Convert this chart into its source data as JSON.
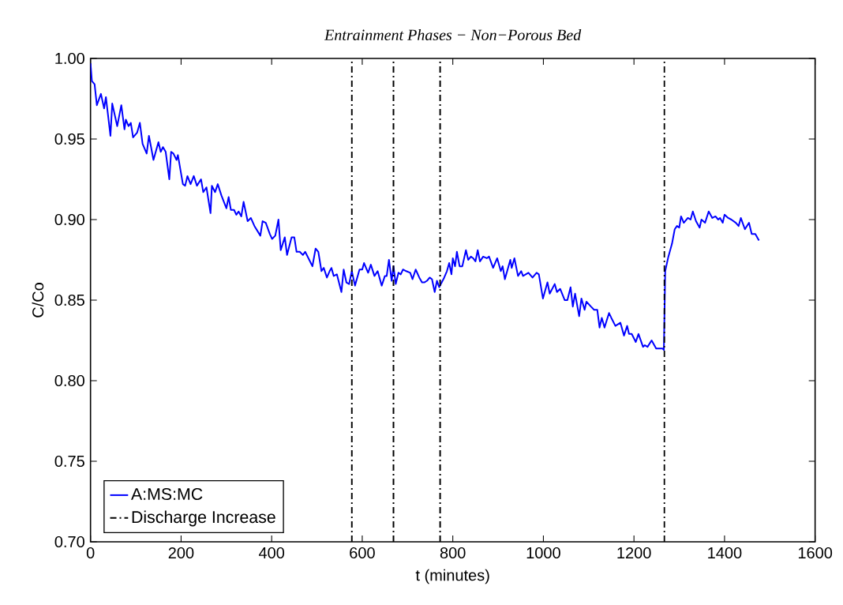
{
  "chart_data": {
    "type": "line",
    "title": "Entrainment Phases − Non−Porous Bed",
    "xlabel": "t (minutes)",
    "ylabel": "C/Co",
    "xlim": [
      0,
      1600
    ],
    "ylim": [
      0.7,
      1.0
    ],
    "xticks": [
      0,
      200,
      400,
      600,
      800,
      1000,
      1200,
      1400,
      1600
    ],
    "yticks": [
      {
        "value": 0.7,
        "label": "0.70"
      },
      {
        "value": 0.75,
        "label": "0.75"
      },
      {
        "value": 0.8,
        "label": "0.80"
      },
      {
        "value": 0.85,
        "label": "0.85"
      },
      {
        "value": 0.9,
        "label": "0.90"
      },
      {
        "value": 0.95,
        "label": "0.95"
      },
      {
        "value": 1.0,
        "label": "1.00"
      }
    ],
    "legend": "bottom left",
    "grid": false,
    "marker": "none",
    "series": [
      {
        "name": "A:MS:MC",
        "color": "#0000ff",
        "line_style": "solid",
        "x": [
          0,
          3,
          9,
          14,
          23,
          30,
          34,
          44,
          48,
          59,
          68,
          75,
          78,
          84,
          89,
          94,
          103,
          109,
          115,
          124,
          129,
          139,
          150,
          155,
          160,
          166,
          174,
          178,
          183,
          190,
          193,
          204,
          209,
          214,
          221,
          228,
          235,
          244,
          249,
          256,
          265,
          268,
          275,
          281,
          289,
          300,
          305,
          310,
          317,
          322,
          327,
          333,
          338,
          347,
          354,
          362,
          375,
          380,
          387,
          396,
          401,
          408,
          415,
          420,
          429,
          434,
          444,
          450,
          455,
          462,
          469,
          474,
          483,
          490,
          497,
          503,
          510,
          515,
          522,
          528,
          532,
          537,
          544,
          554,
          559,
          565,
          571,
          577,
          584,
          594,
          600,
          604,
          613,
          619,
          627,
          634,
          643,
          650,
          654,
          659,
          665,
          669,
          674,
          680,
          685,
          690,
          697,
          706,
          711,
          718,
          726,
          732,
          737,
          743,
          749,
          754,
          760,
          765,
          770,
          781,
          787,
          792,
          797,
          800,
          805,
          809,
          815,
          821,
          829,
          834,
          840,
          845,
          850,
          855,
          860,
          867,
          875,
          880,
          889,
          898,
          906,
          910,
          915,
          927,
          930,
          936,
          944,
          951,
          955,
          967,
          976,
          985,
          990,
          999,
          1009,
          1014,
          1025,
          1030,
          1037,
          1047,
          1053,
          1060,
          1065,
          1070,
          1079,
          1084,
          1091,
          1095,
          1105,
          1112,
          1119,
          1124,
          1129,
          1135,
          1145,
          1150,
          1159,
          1170,
          1178,
          1185,
          1189,
          1195,
          1204,
          1210,
          1220,
          1224,
          1230,
          1239,
          1249,
          1263,
          1266,
          1269,
          1276,
          1284,
          1290,
          1295,
          1300,
          1304,
          1310,
          1319,
          1325,
          1330,
          1337,
          1345,
          1349,
          1357,
          1365,
          1373,
          1380,
          1386,
          1390,
          1396,
          1400,
          1408,
          1415,
          1425,
          1431,
          1436,
          1445,
          1454,
          1460,
          1468,
          1476
        ],
        "values": [
          0.997,
          0.986,
          0.984,
          0.971,
          0.978,
          0.969,
          0.976,
          0.952,
          0.972,
          0.958,
          0.971,
          0.956,
          0.962,
          0.958,
          0.96,
          0.951,
          0.954,
          0.96,
          0.947,
          0.941,
          0.952,
          0.937,
          0.948,
          0.942,
          0.945,
          0.942,
          0.925,
          0.942,
          0.941,
          0.937,
          0.94,
          0.922,
          0.921,
          0.927,
          0.922,
          0.927,
          0.921,
          0.925,
          0.917,
          0.92,
          0.904,
          0.921,
          0.917,
          0.922,
          0.915,
          0.907,
          0.914,
          0.906,
          0.906,
          0.903,
          0.905,
          0.902,
          0.911,
          0.899,
          0.901,
          0.896,
          0.89,
          0.899,
          0.898,
          0.891,
          0.888,
          0.89,
          0.9,
          0.881,
          0.889,
          0.878,
          0.889,
          0.889,
          0.88,
          0.88,
          0.878,
          0.88,
          0.875,
          0.871,
          0.882,
          0.88,
          0.868,
          0.87,
          0.864,
          0.868,
          0.87,
          0.865,
          0.866,
          0.855,
          0.869,
          0.861,
          0.86,
          0.868,
          0.859,
          0.869,
          0.869,
          0.873,
          0.867,
          0.872,
          0.865,
          0.868,
          0.859,
          0.865,
          0.865,
          0.875,
          0.862,
          0.871,
          0.86,
          0.867,
          0.866,
          0.869,
          0.868,
          0.867,
          0.863,
          0.869,
          0.864,
          0.861,
          0.861,
          0.862,
          0.864,
          0.863,
          0.855,
          0.862,
          0.858,
          0.864,
          0.868,
          0.873,
          0.866,
          0.876,
          0.871,
          0.88,
          0.871,
          0.871,
          0.881,
          0.875,
          0.877,
          0.876,
          0.874,
          0.881,
          0.874,
          0.877,
          0.876,
          0.877,
          0.87,
          0.876,
          0.868,
          0.871,
          0.863,
          0.875,
          0.87,
          0.876,
          0.865,
          0.868,
          0.865,
          0.867,
          0.864,
          0.867,
          0.866,
          0.851,
          0.861,
          0.854,
          0.86,
          0.855,
          0.857,
          0.85,
          0.85,
          0.858,
          0.846,
          0.854,
          0.84,
          0.851,
          0.844,
          0.849,
          0.846,
          0.844,
          0.844,
          0.833,
          0.839,
          0.833,
          0.842,
          0.839,
          0.834,
          0.836,
          0.828,
          0.834,
          0.829,
          0.829,
          0.824,
          0.829,
          0.821,
          0.822,
          0.821,
          0.825,
          0.82,
          0.82,
          0.819,
          0.868,
          0.877,
          0.885,
          0.894,
          0.896,
          0.895,
          0.902,
          0.898,
          0.901,
          0.9,
          0.905,
          0.899,
          0.895,
          0.9,
          0.898,
          0.905,
          0.901,
          0.902,
          0.9,
          0.901,
          0.898,
          0.903,
          0.901,
          0.9,
          0.898,
          0.896,
          0.901,
          0.894,
          0.898,
          0.891,
          0.891,
          0.887
        ]
      }
    ],
    "ref_lines": [
      {
        "axis": "x",
        "value": 577,
        "label": "Discharge Increase",
        "color": "#000000",
        "line_style": "dashdot"
      },
      {
        "axis": "x",
        "value": 669,
        "color": "#000000",
        "line_style": "dashdot"
      },
      {
        "axis": "x",
        "value": 772,
        "color": "#000000",
        "line_style": "dashdot"
      },
      {
        "axis": "x",
        "value": 1267,
        "color": "#000000",
        "line_style": "dashdot"
      }
    ]
  }
}
